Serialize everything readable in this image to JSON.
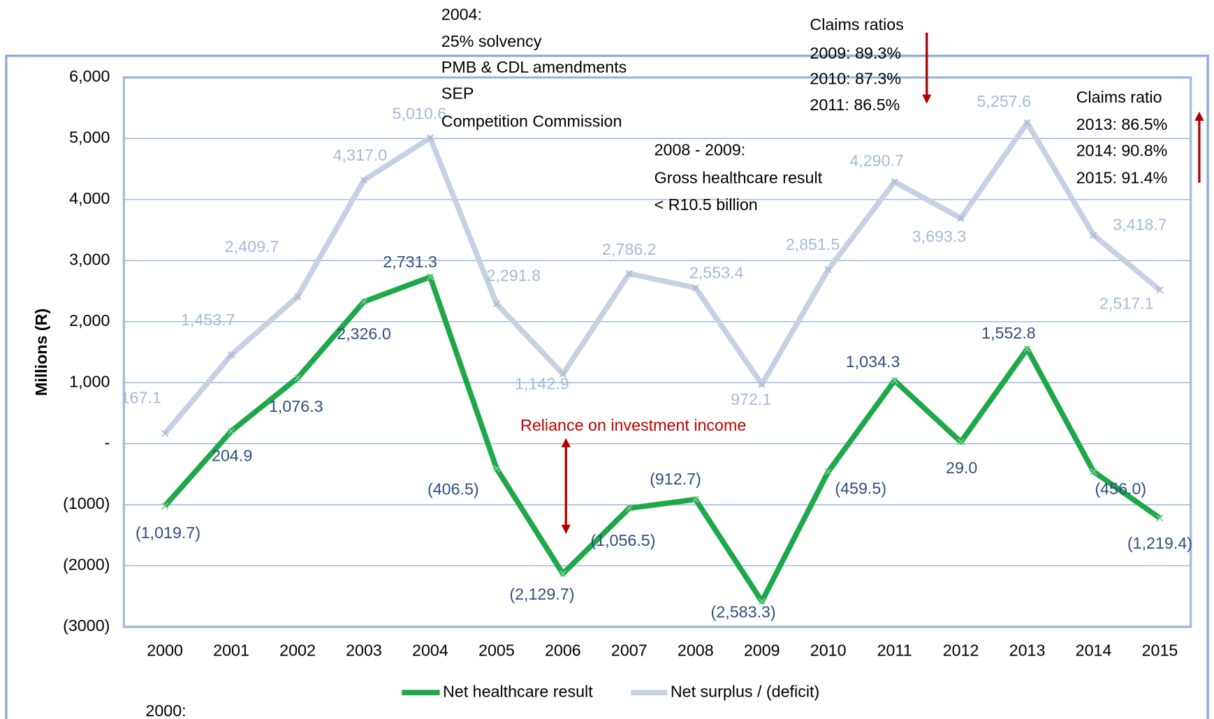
{
  "chart_data": {
    "type": "line",
    "y_label": "Millions (R)",
    "categories": [
      "2000",
      "2001",
      "2002",
      "2003",
      "2004",
      "2005",
      "2006",
      "2007",
      "2008",
      "2009",
      "2010",
      "2011",
      "2012",
      "2013",
      "2014",
      "2015"
    ],
    "ylim": [
      -3000,
      6000
    ],
    "yticks": [
      {
        "value": -3000,
        "label": "(3000)"
      },
      {
        "value": -2000,
        "label": "(2000)"
      },
      {
        "value": -1000,
        "label": "(1000)"
      },
      {
        "value": 0,
        "label": "-"
      },
      {
        "value": 1000,
        "label": "1,000"
      },
      {
        "value": 2000,
        "label": "2,000"
      },
      {
        "value": 3000,
        "label": "3,000"
      },
      {
        "value": 4000,
        "label": "4,000"
      },
      {
        "value": 5000,
        "label": "5,000"
      },
      {
        "value": 6000,
        "label": "6,000"
      }
    ],
    "grid": true,
    "legend": "bottom",
    "series": [
      {
        "name": "Net healthcare result",
        "color": "#1ea84a",
        "label_color": "#2f4f7f",
        "values": [
          -1019.7,
          204.9,
          1076.3,
          2326.0,
          2731.3,
          -406.5,
          -2129.7,
          -1056.5,
          -912.7,
          -2583.3,
          -459.5,
          1034.3,
          29.0,
          1552.8,
          -456.0,
          -1219.4
        ],
        "value_labels": [
          "(1,019.7)",
          "204.9",
          "1,076.3",
          "2,326.0",
          "2,731.3",
          "(406.5)",
          "(2,129.7)",
          "(1,056.5)",
          "(912.7)",
          "(2,583.3)",
          "(459.5)",
          "1,034.3",
          "29.0",
          "1,552.8",
          "(456.0)",
          "(1,219.4)"
        ]
      },
      {
        "name": "Net surplus / (deficit)",
        "color": "#c6d1e3",
        "label_color": "#a5bbd8",
        "values": [
          167.1,
          1453.7,
          2409.7,
          4317.0,
          5010.6,
          2291.8,
          1142.9,
          2786.2,
          2553.4,
          972.1,
          2851.5,
          4290.7,
          3693.3,
          5257.6,
          3418.7,
          2517.1
        ],
        "value_labels": [
          "167.1",
          "1,453.7",
          "2,409.7",
          "4,317.0",
          "5,010.6",
          "2,291.8",
          "1,142.9",
          "2,786.2",
          "2,553.4",
          "972.1",
          "2,851.5",
          "4,290.7",
          "3,693.3",
          "5,257.6",
          "3,418.7",
          "2,517.1"
        ]
      }
    ],
    "annotations": [
      {
        "lines": [
          "2004:",
          "25% solvency",
          "PMB & CDL amendments",
          "SEP",
          "Competition Commission"
        ]
      },
      {
        "lines": [
          "Claims ratios",
          "2009: 89.3%",
          "2010: 87.3%",
          "2011: 86.5%"
        ]
      },
      {
        "lines": [
          "Claims ratio",
          "2013: 86.5%",
          "2014: 90.8%",
          "2015: 91.4%"
        ]
      },
      {
        "lines": [
          "2008 - 2009:",
          "Gross healthcare result",
          "< R10.5 billion"
        ]
      },
      {
        "lines": [
          "Reliance on investment income"
        ],
        "color": "#c00000"
      },
      {
        "lines": [
          "2000:"
        ]
      }
    ]
  }
}
